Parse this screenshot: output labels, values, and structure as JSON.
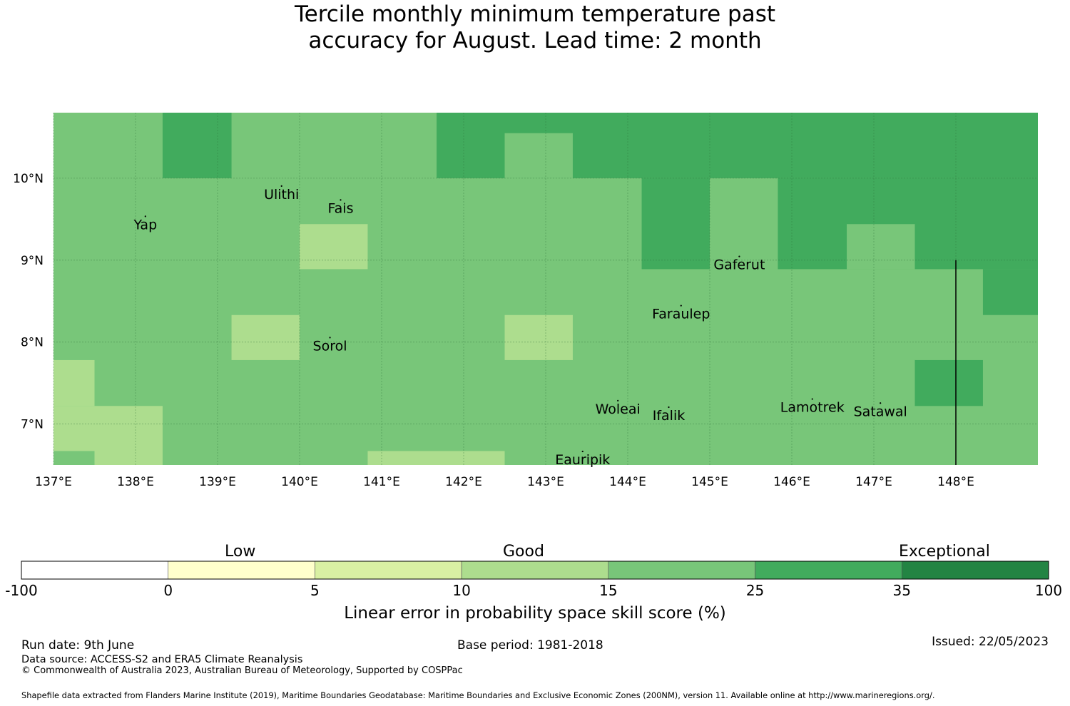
{
  "title": {
    "line1": "Tercile monthly minimum temperature past",
    "line2": "accuracy for August. Lead time: 2 month"
  },
  "map": {
    "lon_range": [
      137.0,
      149.0
    ],
    "lat_range": [
      6.5,
      10.8
    ],
    "lat_ticks": [
      {
        "value": 10,
        "label": "10°N"
      },
      {
        "value": 9,
        "label": "9°N"
      },
      {
        "value": 8,
        "label": "8°N"
      },
      {
        "value": 7,
        "label": "7°N"
      }
    ],
    "lon_ticks": [
      {
        "value": 137,
        "label": "137°E"
      },
      {
        "value": 138,
        "label": "138°E"
      },
      {
        "value": 139,
        "label": "139°E"
      },
      {
        "value": 140,
        "label": "140°E"
      },
      {
        "value": 141,
        "label": "141°E"
      },
      {
        "value": 142,
        "label": "142°E"
      },
      {
        "value": 143,
        "label": "143°E"
      },
      {
        "value": 144,
        "label": "144°E"
      },
      {
        "value": 145,
        "label": "145°E"
      },
      {
        "value": 146,
        "label": "146°E"
      },
      {
        "value": 147,
        "label": "147°E"
      },
      {
        "value": 148,
        "label": "148°E"
      }
    ],
    "base_color": "#78c679",
    "cells": [
      {
        "lon": [
          138.33,
          139.17
        ],
        "lat": [
          10.0,
          10.8
        ],
        "color": "#41ab5d"
      },
      {
        "lon": [
          141.67,
          149.0
        ],
        "lat": [
          10.0,
          10.8
        ],
        "color": "#41ab5d"
      },
      {
        "lon": [
          142.5,
          143.33
        ],
        "lat": [
          10.0,
          10.55
        ],
        "color": "#78c679"
      },
      {
        "lon": [
          144.17,
          145.0
        ],
        "lat": [
          8.89,
          10.0
        ],
        "color": "#41ab5d"
      },
      {
        "lon": [
          145.83,
          149.0
        ],
        "lat": [
          8.89,
          10.0
        ],
        "color": "#41ab5d"
      },
      {
        "lon": [
          146.67,
          147.5
        ],
        "lat": [
          8.89,
          9.44
        ],
        "color": "#78c679"
      },
      {
        "lon": [
          148.33,
          149.0
        ],
        "lat": [
          8.33,
          8.89
        ],
        "color": "#41ab5d"
      },
      {
        "lon": [
          147.5,
          148.33
        ],
        "lat": [
          7.22,
          7.78
        ],
        "color": "#41ab5d"
      },
      {
        "lon": [
          140.0,
          140.83
        ],
        "lat": [
          8.89,
          9.44
        ],
        "color": "#addd8e"
      },
      {
        "lon": [
          139.17,
          140.0
        ],
        "lat": [
          7.78,
          8.33
        ],
        "color": "#addd8e"
      },
      {
        "lon": [
          142.5,
          143.33
        ],
        "lat": [
          7.78,
          8.33
        ],
        "color": "#addd8e"
      },
      {
        "lon": [
          137.0,
          137.5
        ],
        "lat": [
          7.22,
          7.78
        ],
        "color": "#addd8e"
      },
      {
        "lon": [
          137.0,
          138.33
        ],
        "lat": [
          6.67,
          7.22
        ],
        "color": "#addd8e"
      },
      {
        "lon": [
          137.5,
          138.33
        ],
        "lat": [
          6.5,
          6.67
        ],
        "color": "#addd8e"
      },
      {
        "lon": [
          140.83,
          142.5
        ],
        "lat": [
          6.5,
          6.67
        ],
        "color": "#addd8e"
      }
    ],
    "places": [
      {
        "name": "Yap",
        "lon": 138.12,
        "lat": 9.5
      },
      {
        "name": "Ulithi",
        "lon": 139.78,
        "lat": 9.87
      },
      {
        "name": "Fais",
        "lon": 140.5,
        "lat": 9.7
      },
      {
        "name": "Gaferut",
        "lon": 145.36,
        "lat": 9.01
      },
      {
        "name": "Faraulep",
        "lon": 144.65,
        "lat": 8.41
      },
      {
        "name": "Sorol",
        "lon": 140.37,
        "lat": 8.02
      },
      {
        "name": "Woleai",
        "lon": 143.88,
        "lat": 7.25
      },
      {
        "name": "Ifalik",
        "lon": 144.5,
        "lat": 7.17
      },
      {
        "name": "Lamotrek",
        "lon": 146.25,
        "lat": 7.27
      },
      {
        "name": "Satawal",
        "lon": 147.08,
        "lat": 7.22
      },
      {
        "name": "Eauripik",
        "lon": 143.45,
        "lat": 6.63
      }
    ],
    "boundary_line": {
      "lon": 148.0,
      "lat": [
        6.5,
        9.0
      ]
    }
  },
  "colorbar": {
    "categories": [
      "Low",
      "Good",
      "Exceptional"
    ],
    "bins": [
      {
        "from": "-100",
        "to": "0",
        "color": "#ffffff"
      },
      {
        "from": "0",
        "to": "5",
        "color": "#ffffcc"
      },
      {
        "from": "5",
        "to": "10",
        "color": "#d9f0a3"
      },
      {
        "from": "10",
        "to": "15",
        "color": "#addd8e"
      },
      {
        "from": "15",
        "to": "25",
        "color": "#78c679"
      },
      {
        "from": "25",
        "to": "35",
        "color": "#41ab5d"
      },
      {
        "from": "35",
        "to": "100",
        "color": "#238443"
      }
    ],
    "tick_labels": [
      "-100",
      "0",
      "5",
      "10",
      "15",
      "25",
      "35",
      "100"
    ],
    "title": "Linear error in probability space skill score (%)"
  },
  "footer": {
    "run_date": "Run date: 9th June",
    "base_period": "Base period: 1981-2018",
    "issued": "Issued: 22/05/2023",
    "data_source": "Data source: ACCESS-S2 and ERA5 Climate Reanalysis",
    "copyright": "© Commonwealth of Australia 2023, Australian Bureau of Meteorology, Supported by COSPPac",
    "shapefile": "Shapefile data extracted from Flanders Marine Institute (2019), Maritime Boundaries Geodatabase: Maritime Boundaries and Exclusive Economic Zones (200NM), version 11. Available online at http://www.marineregions.org/."
  }
}
